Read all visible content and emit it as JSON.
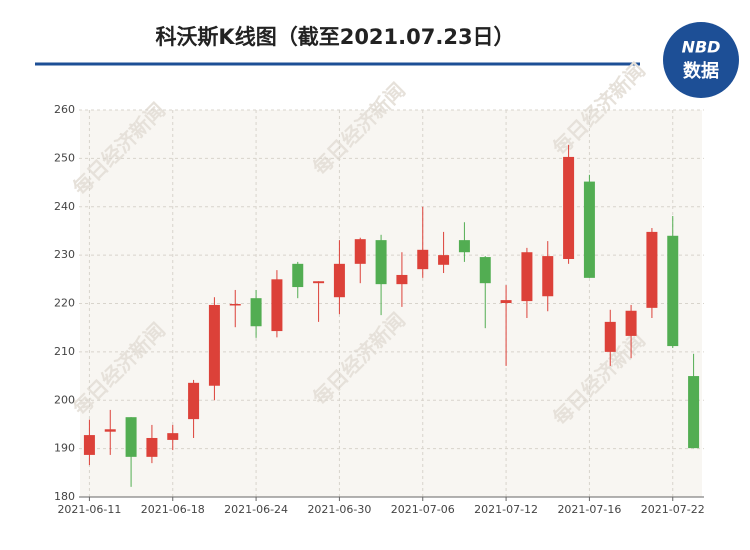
{
  "chart_data": {
    "type": "candlestick",
    "title": "科沃斯K线图（截至2021.07.23日）",
    "logo": {
      "brand": "NBD",
      "label": "数据"
    },
    "watermark": "每日经济新闻",
    "x": [
      "2021-06-11",
      null,
      null,
      null,
      "2021-06-18",
      null,
      null,
      null,
      "2021-06-24",
      null,
      null,
      null,
      "2021-06-30",
      null,
      null,
      null,
      "2021-07-06",
      null,
      null,
      null,
      "2021-07-12",
      null,
      null,
      null,
      "2021-07-16",
      null,
      null,
      null,
      "2021-07-22",
      null
    ],
    "open": [
      188.7,
      193.5,
      196.5,
      188.3,
      191.8,
      196.1,
      203.0,
      219.6,
      221.1,
      214.3,
      228.2,
      224.2,
      221.3,
      228.2,
      233.1,
      224.0,
      227.1,
      228.0,
      233.1,
      229.6,
      220.1,
      220.5,
      221.5,
      229.2,
      245.2,
      210.0,
      213.3,
      219.1,
      234.0,
      205.0
    ],
    "high": [
      196.0,
      198.0,
      196.5,
      194.9,
      194.9,
      204.2,
      221.3,
      222.8,
      222.8,
      226.9,
      228.6,
      224.6,
      233.1,
      233.6,
      234.2,
      230.6,
      240.0,
      234.8,
      236.8,
      229.8,
      223.8,
      231.5,
      232.9,
      252.8,
      246.6,
      218.7,
      219.7,
      235.6,
      238.1,
      209.6
    ],
    "low": [
      186.6,
      188.7,
      182.1,
      187.0,
      189.7,
      192.2,
      200.0,
      215.1,
      212.9,
      213.0,
      221.1,
      216.2,
      217.8,
      224.2,
      217.6,
      219.3,
      225.3,
      226.3,
      228.6,
      214.9,
      207.1,
      217.0,
      218.4,
      228.2,
      225.3,
      207.1,
      208.7,
      217.0,
      210.8,
      190.1
    ],
    "close": [
      192.8,
      194.0,
      188.3,
      192.2,
      193.2,
      203.6,
      219.7,
      219.9,
      215.3,
      225.0,
      223.4,
      224.6,
      228.2,
      233.3,
      224.0,
      225.9,
      231.1,
      230.0,
      230.6,
      224.2,
      220.7,
      230.6,
      229.8,
      250.3,
      225.3,
      216.2,
      218.5,
      234.8,
      211.2,
      190.1
    ],
    "up_color": "#dc4139",
    "down_color": "#52ad52",
    "ylim": [
      180,
      260
    ],
    "yticks": [
      180,
      190,
      200,
      210,
      220,
      230,
      240,
      250,
      260
    ],
    "grid": true
  }
}
